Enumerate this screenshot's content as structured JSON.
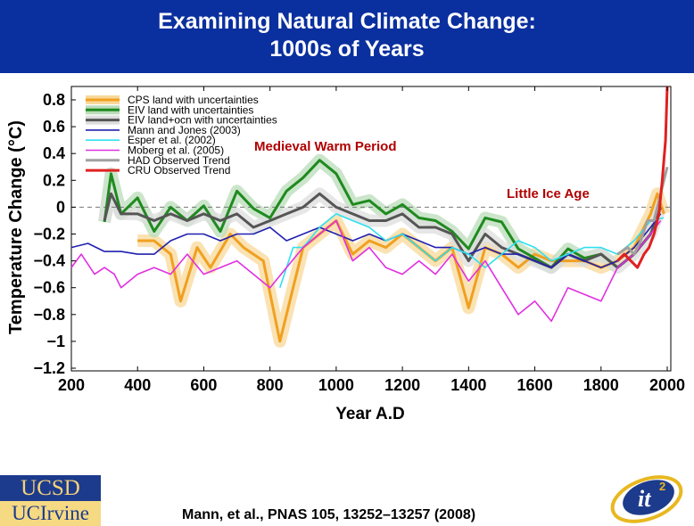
{
  "slide": {
    "title_line1": "Examining Natural Climate Change:",
    "title_line2": "1000s of Years",
    "citation": "Mann, et al., PNAS 105, 13252–13257 (2008)",
    "logos": {
      "ucsd": "UCSD",
      "uci": "UCIrvine",
      "it2": "it2"
    },
    "title_bg": "#0a2f9e"
  },
  "chart_data": {
    "type": "line",
    "xlabel": "Year A.D",
    "ylabel": "Temperature Change  (°C)",
    "xlim": [
      200,
      2000
    ],
    "ylim": [
      -1.2,
      0.8
    ],
    "xticks": [
      200,
      400,
      600,
      800,
      1000,
      1200,
      1400,
      1600,
      1800,
      2000
    ],
    "yticks": [
      0.8,
      0.6,
      0.4,
      0.2,
      0,
      -0.2,
      -0.4,
      -0.6,
      -0.8,
      -1,
      -1.2
    ],
    "ytick_labels": [
      "0.8",
      "0.6",
      "0.4",
      "0.2",
      "0",
      "−0.2",
      "−0.4",
      "−0.6",
      "−0.8",
      "−1",
      "−1.2"
    ],
    "zero_line": "dashed",
    "legend_position": "top-left",
    "annotations": [
      {
        "text": "Medieval Warm Period",
        "x": 1000,
        "y": 0.45,
        "color": "#b00000"
      },
      {
        "text": "Little Ice Age",
        "x": 1700,
        "y": 0.1,
        "color": "#b00000"
      }
    ],
    "series": [
      {
        "name": "CPS land with uncertainties",
        "color": "#f0a020",
        "band": "#f8d89a",
        "width": 3,
        "x": [
          400,
          450,
          500,
          530,
          580,
          620,
          680,
          720,
          780,
          830,
          870,
          900,
          950,
          1000,
          1050,
          1100,
          1150,
          1200,
          1250,
          1300,
          1350,
          1400,
          1450,
          1500,
          1550,
          1600,
          1650,
          1700,
          1750,
          1800,
          1850,
          1900,
          1950,
          1970,
          1990
        ],
        "y": [
          -0.25,
          -0.25,
          -0.35,
          -0.7,
          -0.3,
          -0.45,
          -0.2,
          -0.3,
          -0.4,
          -1.0,
          -0.6,
          -0.3,
          -0.2,
          -0.1,
          -0.35,
          -0.25,
          -0.3,
          -0.2,
          -0.3,
          -0.4,
          -0.3,
          -0.75,
          -0.3,
          -0.35,
          -0.45,
          -0.35,
          -0.4,
          -0.4,
          -0.4,
          -0.45,
          -0.4,
          -0.3,
          -0.05,
          0.1,
          -0.05
        ]
      },
      {
        "name": "EIV land with uncertainties",
        "color": "#1f8a1f",
        "band": "#b9dcb9",
        "width": 3,
        "x": [
          300,
          320,
          350,
          400,
          450,
          500,
          550,
          600,
          650,
          700,
          750,
          800,
          850,
          900,
          950,
          1000,
          1050,
          1100,
          1150,
          1200,
          1250,
          1300,
          1350,
          1400,
          1450,
          1500,
          1550,
          1600,
          1650,
          1700,
          1750,
          1800,
          1850
        ],
        "y": [
          -0.11,
          0.25,
          -0.05,
          0.07,
          -0.18,
          0,
          -0.1,
          0.01,
          -0.18,
          0.12,
          -0.01,
          -0.08,
          0.12,
          0.22,
          0.35,
          0.25,
          0.02,
          0.05,
          -0.05,
          0.02,
          -0.08,
          -0.1,
          -0.18,
          -0.31,
          -0.08,
          -0.11,
          -0.31,
          -0.38,
          -0.45,
          -0.31,
          -0.38,
          -0.35,
          -0.45
        ]
      },
      {
        "name": "EIV land+ocn with uncertainties",
        "color": "#555555",
        "band": "#dddddd",
        "width": 3,
        "x": [
          300,
          320,
          350,
          400,
          450,
          500,
          550,
          600,
          650,
          700,
          750,
          800,
          850,
          900,
          950,
          1000,
          1050,
          1100,
          1150,
          1200,
          1250,
          1300,
          1350,
          1400,
          1450,
          1500,
          1550,
          1600,
          1650,
          1700,
          1750,
          1800,
          1850,
          1900,
          1950,
          1980
        ],
        "y": [
          -0.1,
          0.1,
          -0.05,
          -0.05,
          -0.1,
          -0.05,
          -0.1,
          -0.05,
          -0.1,
          -0.05,
          -0.15,
          -0.1,
          -0.05,
          0,
          0.1,
          0,
          -0.05,
          -0.1,
          -0.1,
          -0.05,
          -0.15,
          -0.15,
          -0.2,
          -0.4,
          -0.2,
          -0.3,
          -0.35,
          -0.4,
          -0.45,
          -0.35,
          -0.4,
          -0.35,
          -0.45,
          -0.35,
          -0.2,
          0
        ]
      },
      {
        "name": "Mann and Jones (2003)",
        "color": "#2020b0",
        "width": 1.6,
        "x": [
          200,
          250,
          300,
          350,
          400,
          450,
          500,
          550,
          600,
          650,
          700,
          750,
          800,
          850,
          900,
          950,
          1000,
          1050,
          1100,
          1150,
          1200,
          1250,
          1300,
          1350,
          1400,
          1450,
          1500,
          1550,
          1600,
          1650,
          1700,
          1750,
          1800,
          1850,
          1900,
          1950,
          1980
        ],
        "y": [
          -0.3,
          -0.27,
          -0.33,
          -0.33,
          -0.35,
          -0.35,
          -0.25,
          -0.2,
          -0.2,
          -0.25,
          -0.2,
          -0.2,
          -0.15,
          -0.25,
          -0.2,
          -0.15,
          -0.2,
          -0.25,
          -0.2,
          -0.25,
          -0.2,
          -0.25,
          -0.3,
          -0.3,
          -0.35,
          -0.3,
          -0.35,
          -0.35,
          -0.4,
          -0.45,
          -0.35,
          -0.4,
          -0.45,
          -0.4,
          -0.3,
          -0.15,
          -0.05
        ]
      },
      {
        "name": "Esper et al. (2002)",
        "color": "#30e0f0",
        "width": 1.6,
        "x": [
          830,
          870,
          900,
          950,
          1000,
          1050,
          1100,
          1150,
          1200,
          1250,
          1300,
          1350,
          1400,
          1450,
          1500,
          1550,
          1600,
          1650,
          1700,
          1750,
          1800,
          1850,
          1900,
          1950,
          1990
        ],
        "y": [
          -0.6,
          -0.3,
          -0.3,
          -0.15,
          -0.05,
          -0.1,
          -0.15,
          -0.25,
          -0.2,
          -0.3,
          -0.4,
          -0.3,
          -0.35,
          -0.45,
          -0.35,
          -0.25,
          -0.3,
          -0.4,
          -0.35,
          -0.3,
          -0.3,
          -0.35,
          -0.25,
          -0.1,
          -0.08
        ]
      },
      {
        "name": "Moberg et al. (2005)",
        "color": "#e030e0",
        "width": 1.6,
        "x": [
          200,
          230,
          270,
          300,
          330,
          350,
          400,
          450,
          500,
          550,
          600,
          650,
          700,
          750,
          800,
          850,
          900,
          950,
          1000,
          1050,
          1100,
          1150,
          1200,
          1250,
          1300,
          1350,
          1400,
          1450,
          1500,
          1550,
          1600,
          1650,
          1700,
          1750,
          1800,
          1850,
          1900,
          1950,
          1980
        ],
        "y": [
          -0.45,
          -0.35,
          -0.5,
          -0.45,
          -0.5,
          -0.6,
          -0.5,
          -0.45,
          -0.5,
          -0.35,
          -0.5,
          -0.45,
          -0.4,
          -0.5,
          -0.6,
          -0.45,
          -0.3,
          -0.2,
          -0.1,
          -0.4,
          -0.3,
          -0.45,
          -0.5,
          -0.4,
          -0.5,
          -0.35,
          -0.55,
          -0.4,
          -0.6,
          -0.8,
          -0.7,
          -0.85,
          -0.6,
          -0.65,
          -0.7,
          -0.45,
          -0.35,
          -0.2,
          -0.1
        ]
      },
      {
        "name": "HAD Observed Trend",
        "color": "#a0a0a0",
        "width": 3,
        "x": [
          1850,
          1880,
          1900,
          1920,
          1940,
          1960,
          1980,
          2000
        ],
        "y": [
          -0.35,
          -0.3,
          -0.35,
          -0.25,
          -0.1,
          -0.1,
          0.1,
          0.3
        ]
      },
      {
        "name": "CRU Observed Trend",
        "color": "#e02020",
        "width": 3,
        "x": [
          1850,
          1870,
          1890,
          1910,
          1930,
          1945,
          1960,
          1975,
          1985,
          1995,
          2000
        ],
        "y": [
          -0.4,
          -0.35,
          -0.4,
          -0.45,
          -0.35,
          -0.3,
          -0.2,
          -0.05,
          0.2,
          0.5,
          0.9
        ]
      }
    ]
  }
}
